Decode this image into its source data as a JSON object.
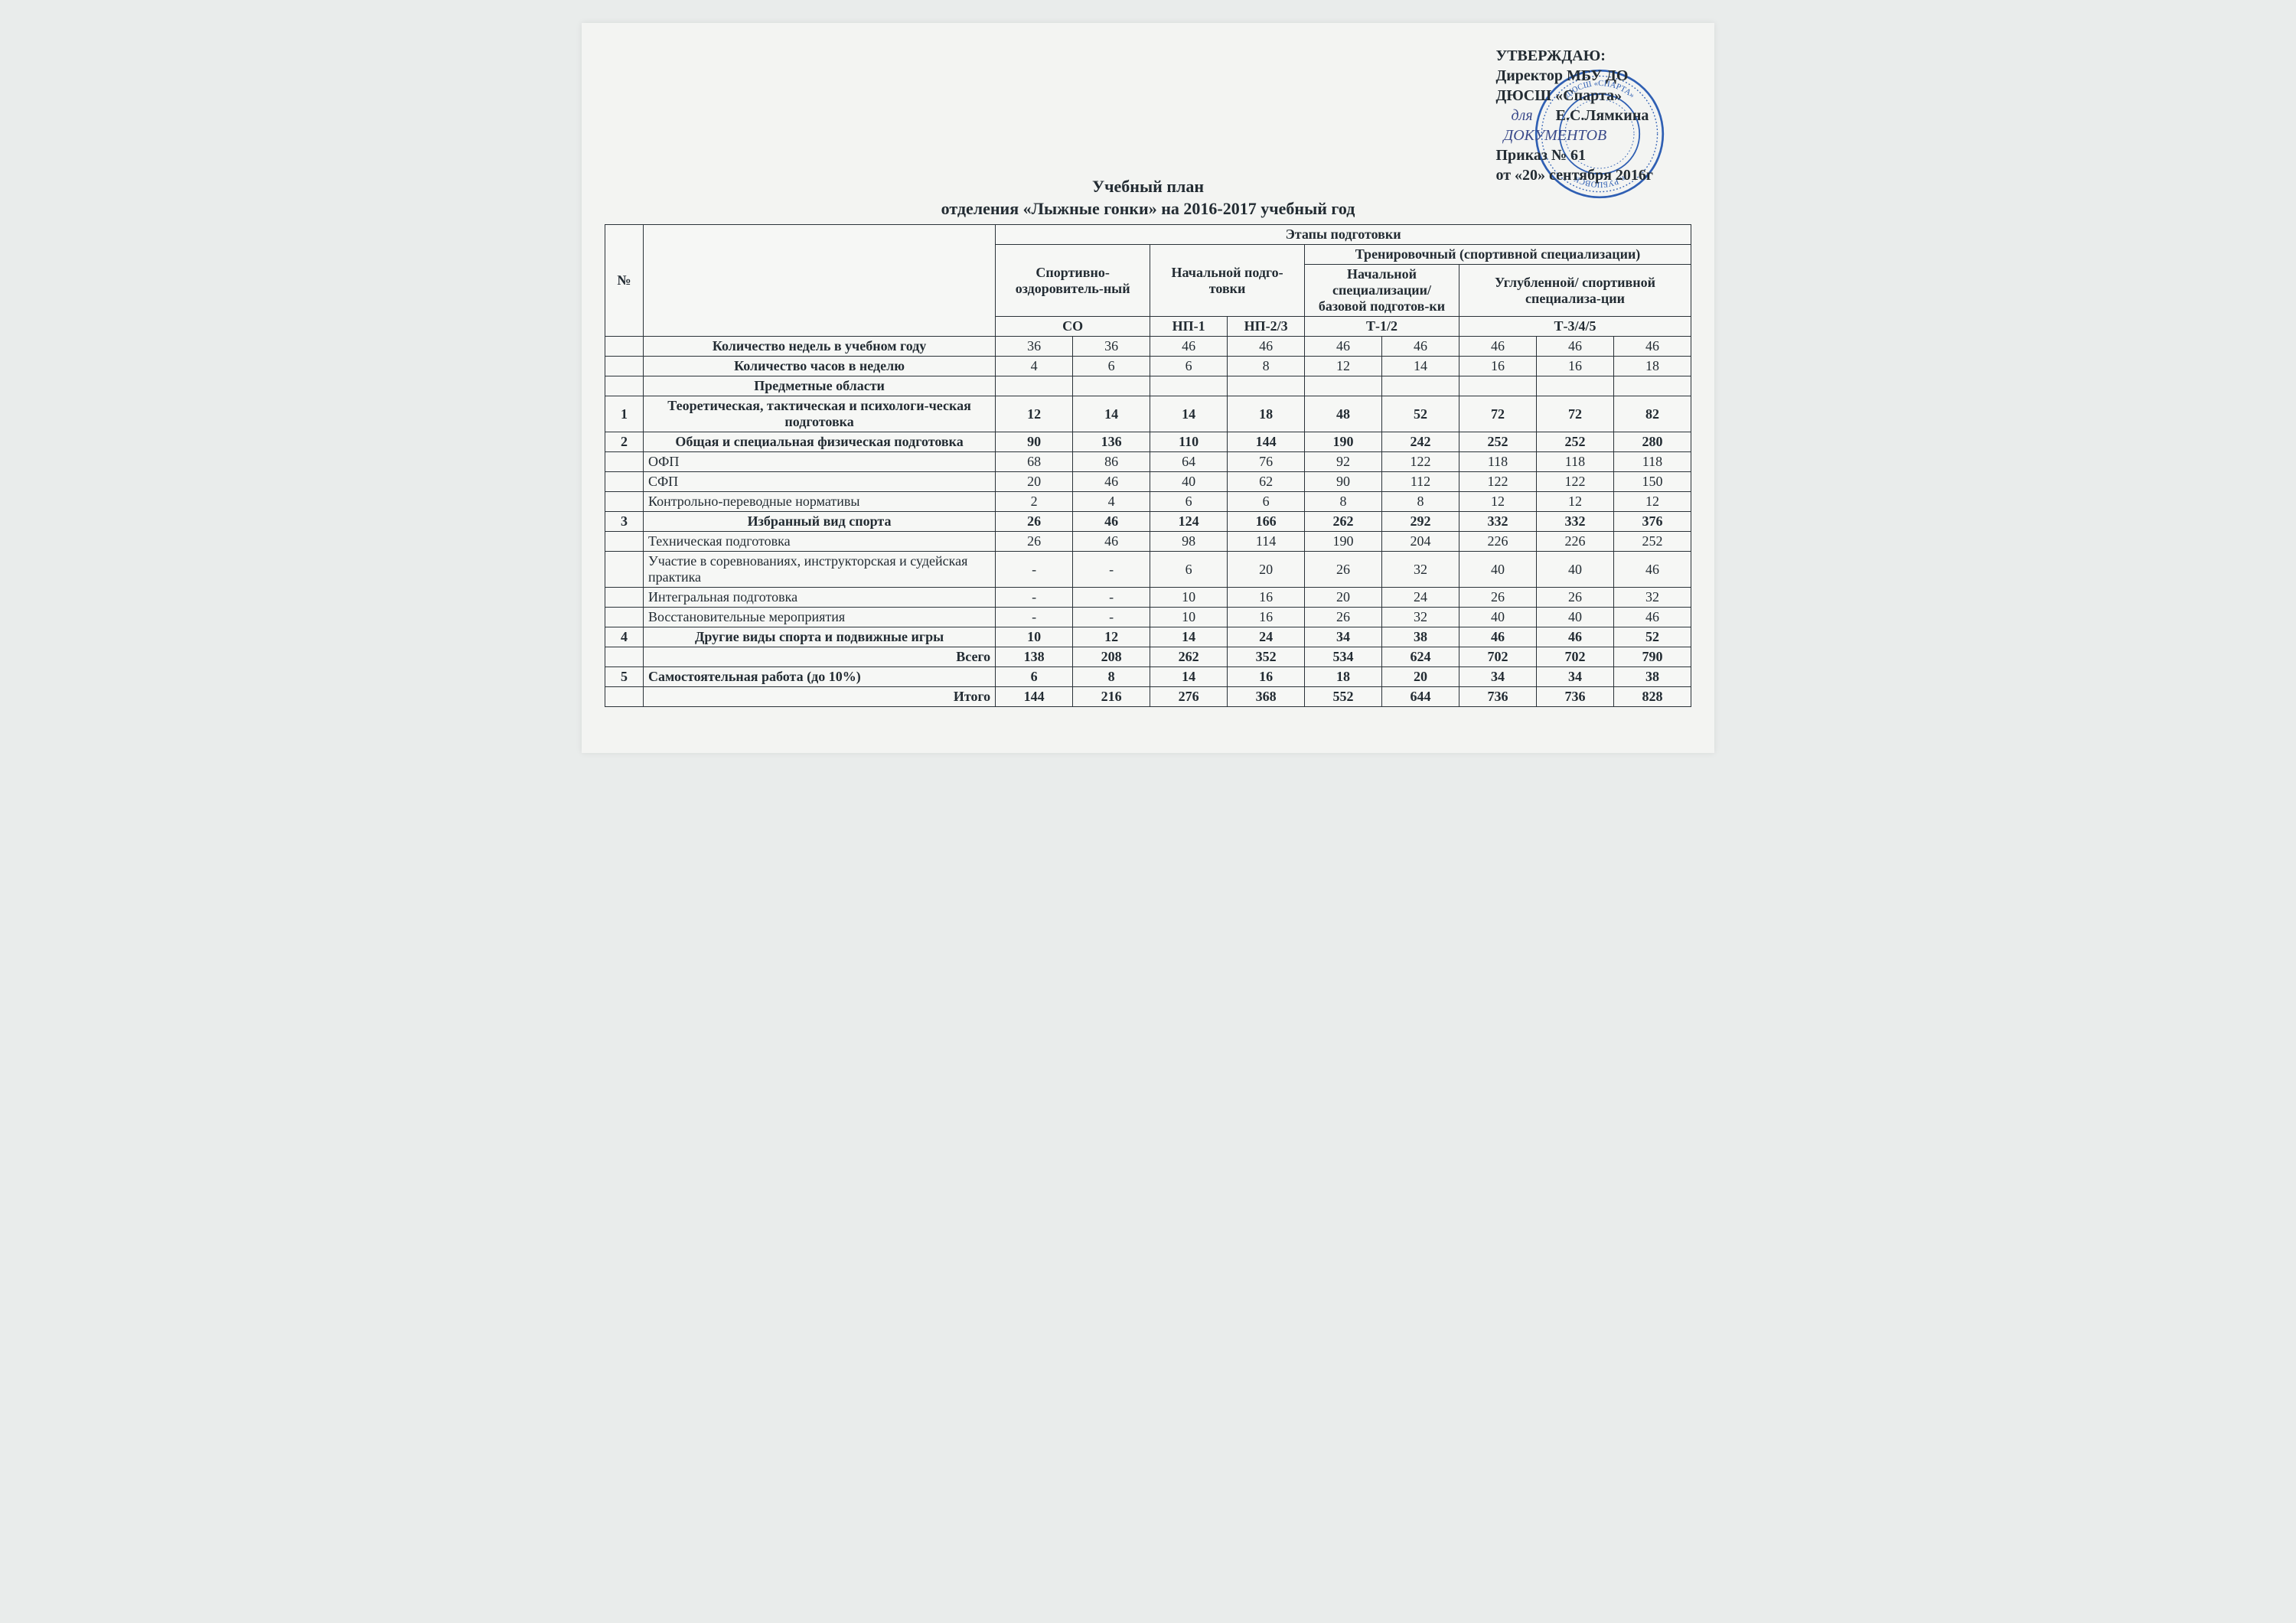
{
  "approval": {
    "line1": "УТВЕРЖДАЮ:",
    "line2": "Директор МБУ ДО",
    "line3": "ДЮСШ «Спарта»",
    "signature_label": "для",
    "signature_name": "Е.С.Лямкина",
    "order_line": "Приказ № 61",
    "date_line": "от «20» сентября 2016г",
    "doc_word": "ДОКУМЕНТОВ"
  },
  "stamp": {
    "outer_color": "#2f5fb3",
    "inner_color": "#3a6fc5",
    "text_top": "г. РУБЦОВСК",
    "text_bottom": "ДЮСШ «СПАРТА»"
  },
  "title": {
    "line1": "Учебный план",
    "line2": "отделения «Лыжные гонки» на 2016-2017 учебный год"
  },
  "table": {
    "header": {
      "num": "№",
      "stages": "Этапы подготовки",
      "col_soz": "Спортивно-оздоровитель-ный",
      "col_np": "Начальной подго-товки",
      "col_train": "Тренировочный (спортивной специализации)",
      "col_train_a": "Начальной специализации/ базовой подготов-ки",
      "col_train_b": "Углубленной/ спортивной специализа-ции",
      "sub_so": "СО",
      "sub_np1": "НП-1",
      "sub_np23": "НП-2/3",
      "sub_t12": "Т-1/2",
      "sub_t345": "Т-3/4/5"
    },
    "rows": [
      {
        "num": "",
        "label": "Количество недель в учебном году",
        "label_style": "center-bold",
        "cells": [
          "36",
          "36",
          "46",
          "46",
          "46",
          "46",
          "46",
          "46",
          "46"
        ]
      },
      {
        "num": "",
        "label": "Количество часов в неделю",
        "label_style": "center-bold",
        "cells": [
          "4",
          "6",
          "6",
          "8",
          "12",
          "14",
          "16",
          "16",
          "18"
        ]
      },
      {
        "num": "",
        "label": "Предметные области",
        "label_style": "center-bold",
        "cells": [
          "",
          "",
          "",
          "",
          "",
          "",
          "",
          "",
          ""
        ]
      },
      {
        "num": "1",
        "label": "Теоретическая, тактическая и психологи-ческая подготовка",
        "label_style": "center-bold",
        "cells": [
          "12",
          "14",
          "14",
          "18",
          "48",
          "52",
          "72",
          "72",
          "82"
        ],
        "bold_cells": true
      },
      {
        "num": "2",
        "label": "Общая  и специальная физическая подготовка",
        "label_style": "center-bold",
        "cells": [
          "90",
          "136",
          "110",
          "144",
          "190",
          "242",
          "252",
          "252",
          "280"
        ],
        "bold_cells": true
      },
      {
        "num": "",
        "label": "ОФП",
        "label_style": "left",
        "cells": [
          "68",
          "86",
          "64",
          "76",
          "92",
          "122",
          "118",
          "118",
          "118"
        ]
      },
      {
        "num": "",
        "label": "СФП",
        "label_style": "left",
        "cells": [
          "20",
          "46",
          "40",
          "62",
          "90",
          "112",
          "122",
          "122",
          "150"
        ]
      },
      {
        "num": "",
        "label": "Контрольно-переводные нормативы",
        "label_style": "left",
        "cells": [
          "2",
          "4",
          "6",
          "6",
          "8",
          "8",
          "12",
          "12",
          "12"
        ]
      },
      {
        "num": "3",
        "label": "Избранный вид спорта",
        "label_style": "center-bold",
        "cells": [
          "26",
          "46",
          "124",
          "166",
          "262",
          "292",
          "332",
          "332",
          "376"
        ],
        "bold_cells": true
      },
      {
        "num": "",
        "label": "Техническая подготовка",
        "label_style": "left",
        "cells": [
          "26",
          "46",
          "98",
          "114",
          "190",
          "204",
          "226",
          "226",
          "252"
        ]
      },
      {
        "num": "",
        "label": "Участие в соревнованиях, инструкторская и судейская практика",
        "label_style": "left",
        "cells": [
          "-",
          "-",
          "6",
          "20",
          "26",
          "32",
          "40",
          "40",
          "46"
        ]
      },
      {
        "num": "",
        "label": "Интегральная подготовка",
        "label_style": "left",
        "cells": [
          "-",
          "-",
          "10",
          "16",
          "20",
          "24",
          "26",
          "26",
          "32"
        ]
      },
      {
        "num": "",
        "label": "Восстановительные мероприятия",
        "label_style": "left",
        "cells": [
          "-",
          "-",
          "10",
          "16",
          "26",
          "32",
          "40",
          "40",
          "46"
        ]
      },
      {
        "num": "4",
        "label": "Другие виды спорта  и подвижные игры",
        "label_style": "center-bold",
        "cells": [
          "10",
          "12",
          "14",
          "24",
          "34",
          "38",
          "46",
          "46",
          "52"
        ],
        "bold_cells": true
      },
      {
        "num": "",
        "label": "Всего",
        "label_style": "right-bold",
        "cells": [
          "138",
          "208",
          "262",
          "352",
          "534",
          "624",
          "702",
          "702",
          "790"
        ],
        "bold_cells": true
      },
      {
        "num": "5",
        "label": "Самостоятельная работа (до 10%)",
        "label_style": "left-bold",
        "cells": [
          "6",
          "8",
          "14",
          "16",
          "18",
          "20",
          "34",
          "34",
          "38"
        ],
        "bold_cells": true
      },
      {
        "num": "",
        "label": "Итого",
        "label_style": "right-bold",
        "cells": [
          "144",
          "216",
          "276",
          "368",
          "552",
          "644",
          "736",
          "736",
          "828"
        ],
        "bold_cells": true
      }
    ]
  },
  "colors": {
    "page_bg": "#f3f4f2",
    "table_bg": "#f6f7f5",
    "border": "#2a3238",
    "text": "#232c33",
    "stamp_blue": "#2f5fb3",
    "signature_blue": "#3a4a8a"
  }
}
